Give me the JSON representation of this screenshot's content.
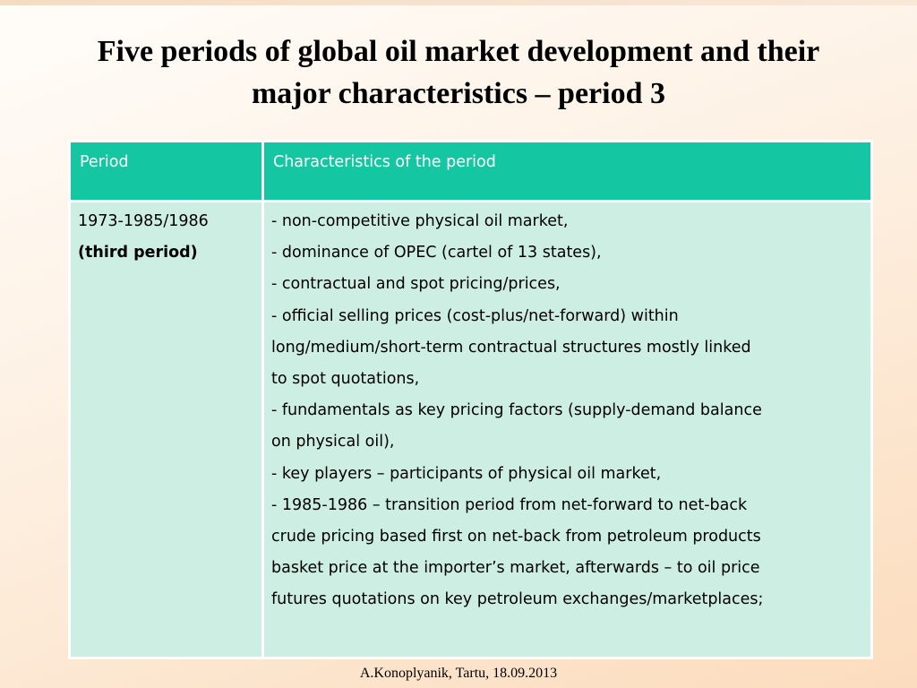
{
  "title_lines": [
    "Five periods of global oil market development and their",
    "major characteristics – period 3"
  ],
  "table": {
    "headers": [
      "Period",
      "Characteristics of the period"
    ],
    "period": {
      "range": "1973-1985/1986",
      "label": "(third period)"
    },
    "characteristics_lines": [
      "- non-competitive physical oil market,",
      "- dominance of OPEC (cartel of 13 states),",
      "- contractual and spot pricing/prices,",
      "- official selling prices (cost-plus/net-forward) within",
      "long/medium/short-term contractual structures mostly linked",
      "to spot quotations,",
      "- fundamentals as key pricing factors (supply-demand balance",
      "on physical oil),",
      "- key players – participants of physical oil market,",
      "- 1985-1986 – transition period from net-forward to net-back",
      "crude pricing based first on net-back from petroleum products",
      "basket price at the importer’s market, afterwards – to oil price",
      "futures quotations on key petroleum exchanges/marketplaces;"
    ]
  },
  "footer": "A.Konoplyanik, Tartu, 18.09.2013",
  "colors": {
    "header_fill": "#15c6a3",
    "body_fill": "#cdeee2",
    "background_gradient": [
      "#fffdf9",
      "#fcdcbd"
    ]
  }
}
